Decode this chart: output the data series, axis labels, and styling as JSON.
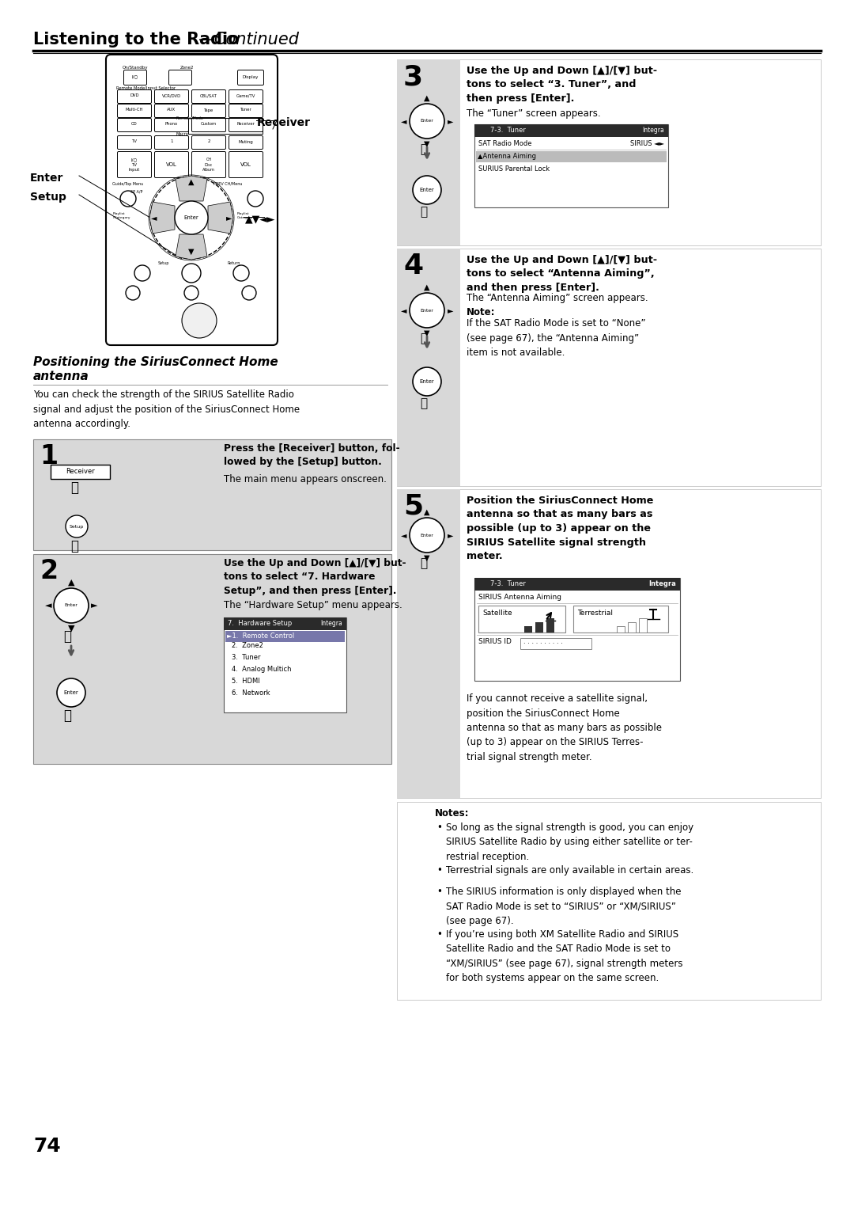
{
  "bg_color": "#ffffff",
  "page_number": "74",
  "header_bold": "Listening to the Radio",
  "header_italic": "—Continued",
  "section_title_line1": "Positioning the SiriusConnect Home",
  "section_title_line2": "antenna",
  "section_intro": "You can check the strength of the SIRIUS Satellite Radio\nsignal and adjust the position of the SiriusConnect Home\nantenna accordingly.",
  "step1_num": "1",
  "step1_title": "Press the [Receiver] button, fol-\nlowed by the [Setup] button.",
  "step1_body": "The main menu appears onscreen.",
  "step2_num": "2",
  "step2_title": "Use the Up and Down [▲]/[▼] but-\ntons to select “7. Hardware\nSetup”, and then press [Enter].",
  "step2_body": "The “Hardware Setup” menu appears.",
  "step3_num": "3",
  "step3_title": "Use the Up and Down [▲]/[▼] but-\ntons to select “3. Tuner”, and\nthen press [Enter].",
  "step3_body": "The “Tuner” screen appears.",
  "step4_num": "4",
  "step4_title": "Use the Up and Down [▲]/[▼] but-\ntons to select “Antenna Aiming”,\nand then press [Enter].",
  "step4_body": "The “Antenna Aiming” screen appears.",
  "step4_note_title": "Note:",
  "step4_note_body": "If the SAT Radio Mode is set to “None”\n(see page 67), the “Antenna Aiming”\nitem is not available.",
  "step5_num": "5",
  "step5_title": "Position the SiriusConnect Home\nantenna so that as many bars as\npossible (up to 3) appear on the\nSIRIUS Satellite signal strength\nmeter.",
  "step5_body": "If you cannot receive a satellite signal,\nposition the SiriusConnect Home\nantenna so that as many bars as possible\n(up to 3) appear on the SIRIUS Terres-\ntrial signal strength meter.",
  "notes_title": "Notes:",
  "notes": [
    "So long as the signal strength is good, you can enjoy\nSIRIUS Satellite Radio by using either satellite or ter-\nrestrial reception.",
    "Terrestrial signals are only available in certain areas.",
    "The SIRIUS information is only displayed when the\nSAT Radio Mode is set to “SIRIUS” or “XM/SIRIUS”\n(see page 67).",
    "If you’re using both XM Satellite Radio and SIRIUS\nSatellite Radio and the SAT Radio Mode is set to\n“XM/SIRIUS” (see page 67), signal strength meters\nfor both systems appear on the same screen."
  ],
  "hw_menu_title": "7.  Hardware Setup",
  "hw_menu_integra": "Integra",
  "hw_menu_items": [
    "►1.  Remote Control",
    "2.  Zone2",
    "3.  Tuner",
    "4.  Analog Multich",
    "5.  HDMI",
    "6.  Network"
  ],
  "tuner_menu_title": "7-3.  Tuner",
  "tuner_menu_integra": "Integra",
  "tuner_menu_items": [
    "SAT Radio Mode",
    "Antenna Aiming",
    "SIRIUS Parental Lock"
  ],
  "tuner_menu_sirius_val": "SIRIUS ◄►",
  "antenna_title": "7-3.  Tuner",
  "antenna_integra": "Integra",
  "antenna_subtitle": "SIRIUS Antenna Aiming",
  "antenna_sat": "Satellite",
  "antenna_ter": "Terrestrial",
  "antenna_sirius_id": "SIRIUS ID",
  "receiver_label": "Receiver",
  "enter_label": "Enter",
  "setup_label": "Setup",
  "arrows_label": "▲▼◄►",
  "step_gray": "#d8d8d8",
  "menu_dark": "#2a2a2a",
  "highlight_row": "#8888aa"
}
